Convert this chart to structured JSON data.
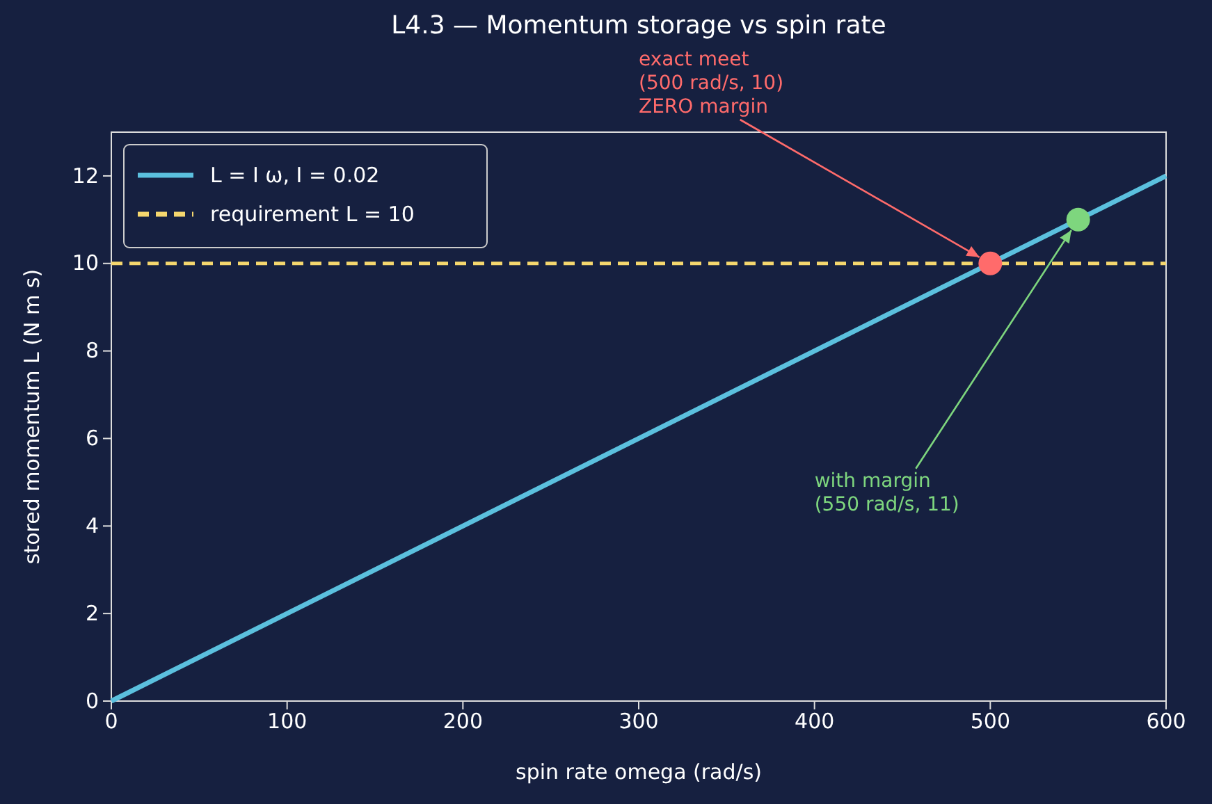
{
  "chart_data": {
    "type": "line",
    "title": "L4.3 — Momentum storage vs spin rate",
    "xlabel": "spin rate  omega  (rad/s)",
    "ylabel": "stored momentum  L  (N m s)",
    "xlim": [
      0,
      600
    ],
    "ylim": [
      0,
      13
    ],
    "xticks": [
      0,
      100,
      200,
      300,
      400,
      500,
      600
    ],
    "yticks": [
      0,
      2,
      4,
      6,
      8,
      10,
      12
    ],
    "series": [
      {
        "name": "L = I ω,  I = 0.02",
        "color": "#5bc0de",
        "x": [
          0,
          600
        ],
        "values": [
          0,
          12
        ]
      },
      {
        "type": "scatter",
        "color": "#ff6b6b",
        "x": [
          500
        ],
        "values": [
          10
        ]
      },
      {
        "type": "scatter",
        "color": "#7ed67e",
        "x": [
          550
        ],
        "values": [
          11
        ]
      }
    ],
    "ref_lines": [
      {
        "axis": "y",
        "value": 10,
        "label": "requirement L = 10",
        "color": "#f5d76e",
        "line_style": "dashed"
      }
    ],
    "annotations": [
      {
        "text": "exact meet\n(500 rad/s, 10)\nZERO margin",
        "x": 500,
        "y": 10
      },
      {
        "text": "with margin\n(550 rad/s, 11)",
        "x": 550,
        "y": 11
      }
    ],
    "legend": "top left"
  }
}
